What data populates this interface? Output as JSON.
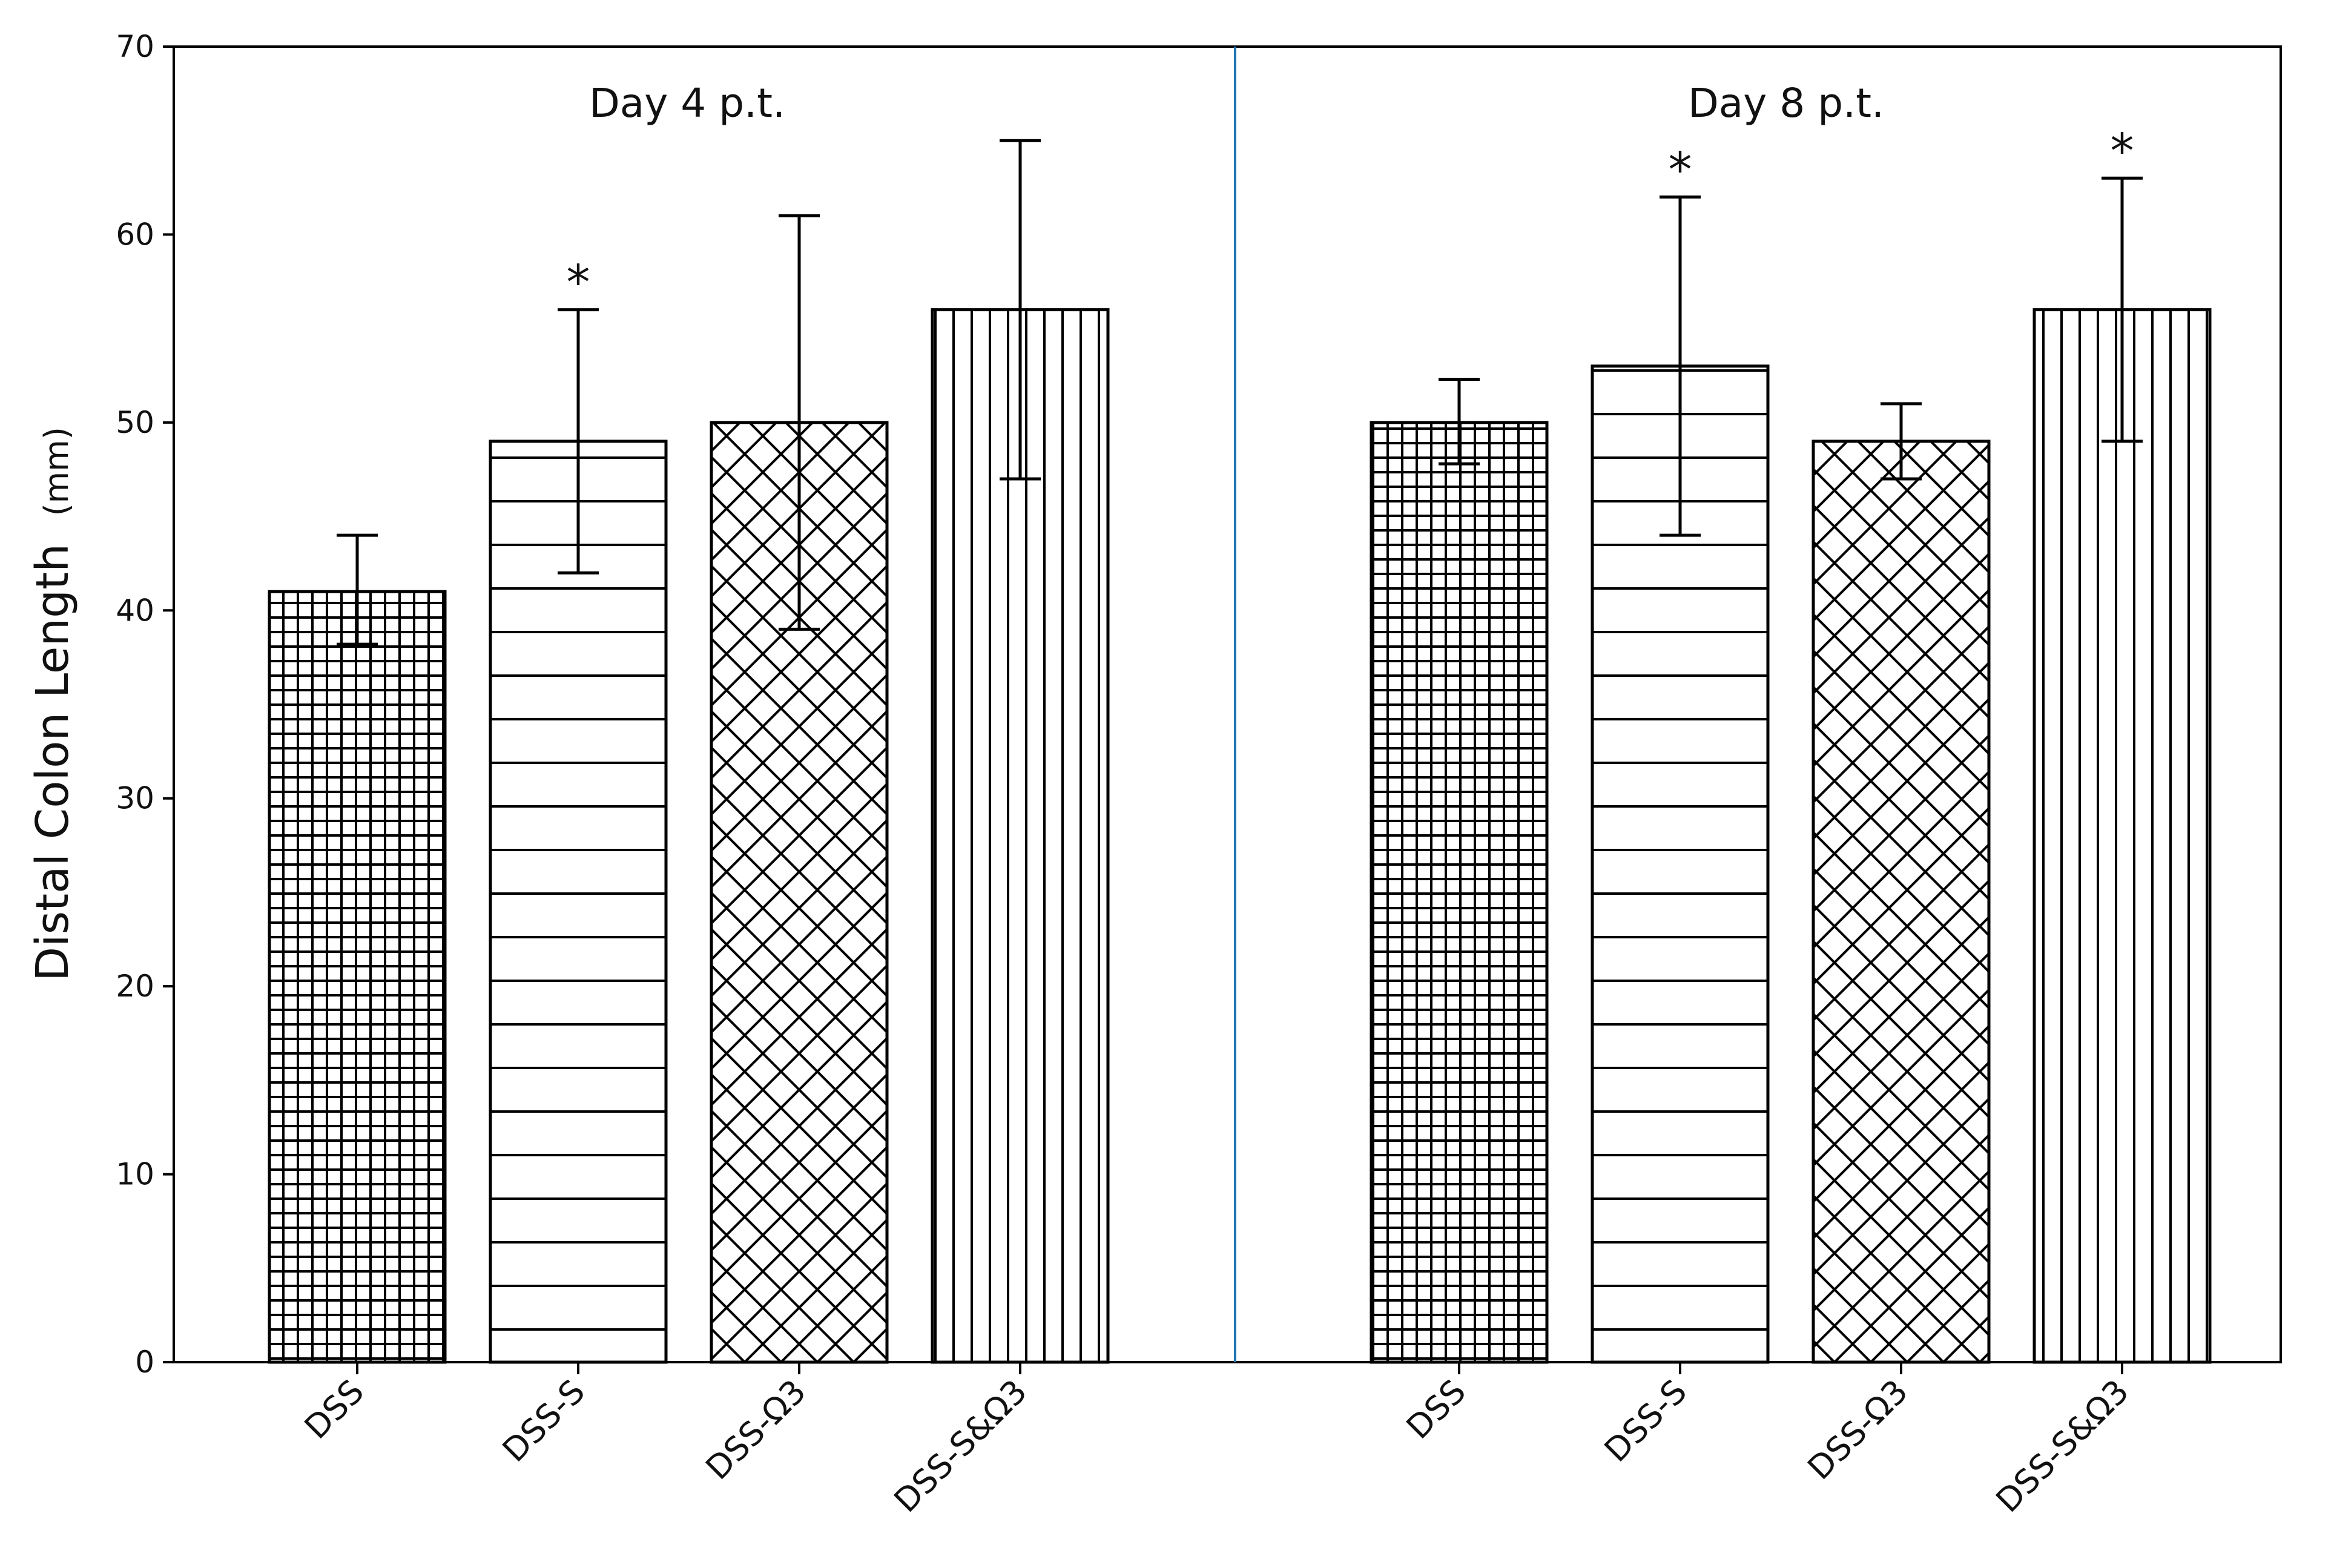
{
  "chart_data": {
    "type": "bar",
    "ylabel": "Distal Colon Length",
    "ylabel_unit": "(mm)",
    "ylim": [
      0,
      70
    ],
    "yticks": [
      0,
      10,
      20,
      30,
      40,
      50,
      60,
      70
    ],
    "grid": false,
    "divider_color": "#1f77b4",
    "bar_edge_color": "#000000",
    "panels": [
      {
        "title": "Day 4 p.t.",
        "bars": [
          {
            "category": "DSS",
            "value": 41,
            "error_low": 38.2,
            "error_high": 44,
            "significant": false,
            "hatch": "grid"
          },
          {
            "category": "DSS-S",
            "value": 49,
            "error_low": 42,
            "error_high": 56,
            "significant": true,
            "hatch": "horizontal"
          },
          {
            "category": "DSS-Ω3",
            "value": 50,
            "error_low": 39,
            "error_high": 61,
            "significant": false,
            "hatch": "crosshatch"
          },
          {
            "category": "DSS-S&Ω3",
            "value": 56,
            "error_low": 47,
            "error_high": 65,
            "significant": false,
            "hatch": "vertical"
          }
        ]
      },
      {
        "title": "Day 8 p.t.",
        "bars": [
          {
            "category": "DSS",
            "value": 50,
            "error_low": 47.8,
            "error_high": 52.3,
            "significant": false,
            "hatch": "grid"
          },
          {
            "category": "DSS-S",
            "value": 53,
            "error_low": 44,
            "error_high": 62,
            "significant": true,
            "hatch": "horizontal"
          },
          {
            "category": "DSS-Ω3",
            "value": 49,
            "error_low": 47,
            "error_high": 51,
            "significant": false,
            "hatch": "crosshatch"
          },
          {
            "category": "DSS-S&Ω3",
            "value": 56,
            "error_low": 49,
            "error_high": 63,
            "significant": true,
            "hatch": "vertical"
          }
        ]
      }
    ],
    "significance_marker": "*"
  }
}
